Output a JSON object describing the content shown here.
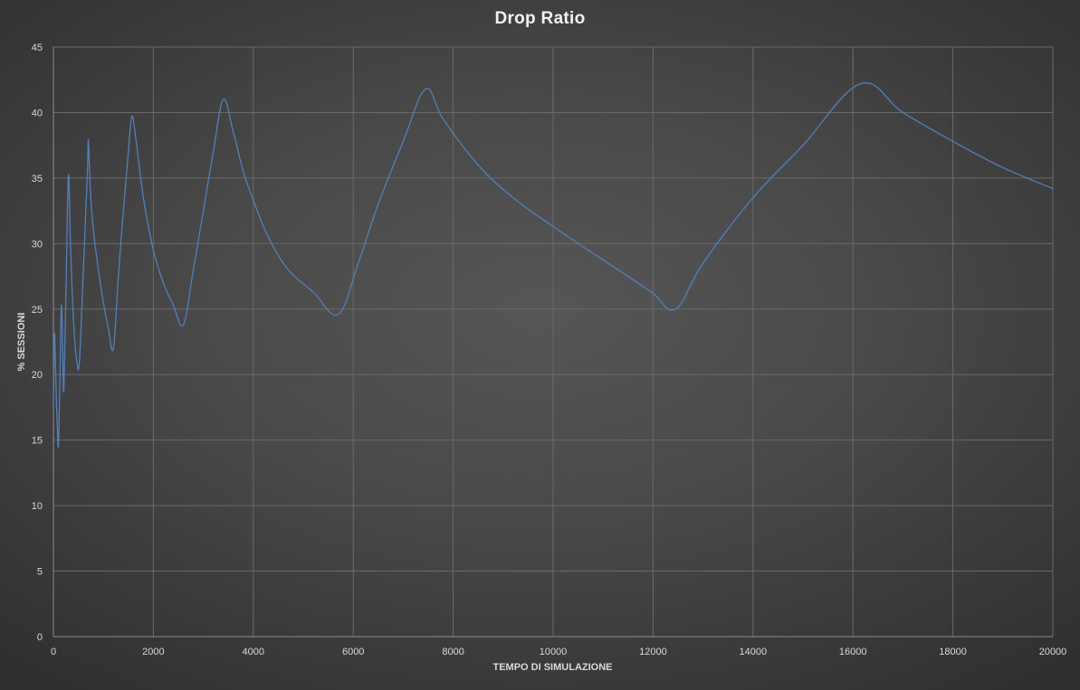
{
  "chart_data": {
    "type": "line",
    "title": "Drop  Ratio",
    "xlabel": "TEMPO DI SIMULAZIONE",
    "ylabel": "% SESSIONI",
    "xlim": [
      0,
      20000
    ],
    "ylim": [
      0,
      45
    ],
    "x_ticks": [
      0,
      2000,
      4000,
      6000,
      8000,
      10000,
      12000,
      14000,
      16000,
      18000,
      20000
    ],
    "y_ticks": [
      0,
      5,
      10,
      15,
      20,
      25,
      30,
      35,
      40,
      45
    ],
    "grid": true,
    "legend": "none",
    "series": [
      {
        "color": "#4f81bd",
        "points": [
          [
            0,
            17.5
          ],
          [
            20,
            23.0
          ],
          [
            40,
            21.0
          ],
          [
            60,
            18.0
          ],
          [
            80,
            16.0
          ],
          [
            100,
            14.6
          ],
          [
            130,
            19.5
          ],
          [
            160,
            25.3
          ],
          [
            190,
            21.0
          ],
          [
            210,
            18.9
          ],
          [
            250,
            26.0
          ],
          [
            300,
            35.2
          ],
          [
            340,
            30.0
          ],
          [
            380,
            26.0
          ],
          [
            420,
            23.0
          ],
          [
            470,
            21.0
          ],
          [
            520,
            21.0
          ],
          [
            600,
            28.0
          ],
          [
            680,
            35.5
          ],
          [
            700,
            37.9
          ],
          [
            740,
            34.0
          ],
          [
            800,
            31.0
          ],
          [
            900,
            28.0
          ],
          [
            1000,
            25.5
          ],
          [
            1100,
            23.5
          ],
          [
            1200,
            22.0
          ],
          [
            1300,
            27.5
          ],
          [
            1400,
            32.5
          ],
          [
            1500,
            37.0
          ],
          [
            1570,
            39.7
          ],
          [
            1650,
            38.0
          ],
          [
            1800,
            33.5
          ],
          [
            2000,
            29.5
          ],
          [
            2200,
            27.0
          ],
          [
            2400,
            25.3
          ],
          [
            2600,
            23.8
          ],
          [
            2800,
            28.0
          ],
          [
            3000,
            32.5
          ],
          [
            3200,
            37.0
          ],
          [
            3400,
            41.0
          ],
          [
            3600,
            38.5
          ],
          [
            3800,
            35.5
          ],
          [
            4000,
            33.3
          ],
          [
            4300,
            30.5
          ],
          [
            4700,
            28.0
          ],
          [
            5200,
            26.3
          ],
          [
            5700,
            24.6
          ],
          [
            6100,
            28.5
          ],
          [
            6500,
            33.0
          ],
          [
            7000,
            37.8
          ],
          [
            7450,
            41.8
          ],
          [
            7800,
            39.5
          ],
          [
            8500,
            36.0
          ],
          [
            9200,
            33.5
          ],
          [
            10000,
            31.3
          ],
          [
            10700,
            29.5
          ],
          [
            11500,
            27.5
          ],
          [
            12000,
            26.2
          ],
          [
            12450,
            25.0
          ],
          [
            13000,
            28.5
          ],
          [
            14000,
            33.5
          ],
          [
            15000,
            37.5
          ],
          [
            16150,
            42.2
          ],
          [
            17000,
            40.0
          ],
          [
            18000,
            37.8
          ],
          [
            19000,
            35.8
          ],
          [
            20000,
            34.2
          ]
        ]
      }
    ]
  }
}
